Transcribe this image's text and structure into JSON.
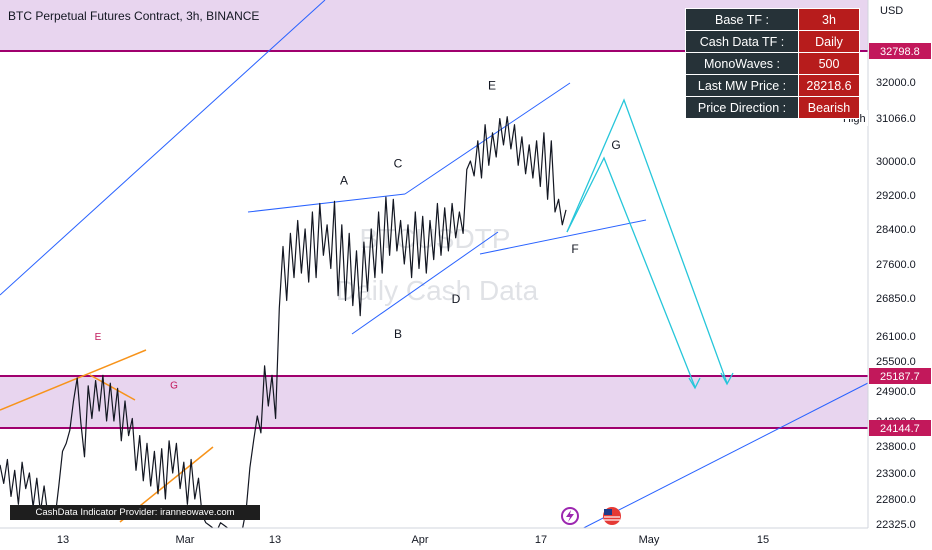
{
  "header": {
    "title": "BTC Perpetual Futures Contract, 3h, BINANCE"
  },
  "watermark": {
    "line1": "BTCUSDTP",
    "line2": "Daily Cash Data"
  },
  "info_table": {
    "rows": [
      {
        "key": "Base TF :",
        "value": "3h"
      },
      {
        "key": "Cash Data TF :",
        "value": "Daily"
      },
      {
        "key": "MonoWaves :",
        "value": "500"
      },
      {
        "key": "Last MW Price :",
        "value": "28218.6"
      },
      {
        "key": "Price Direction :",
        "value": "Bearish"
      }
    ]
  },
  "footer": {
    "credit": "CashData Indicator Provider: iranneowave.com"
  },
  "colors": {
    "zone_fill": "#e8d5ef",
    "zone_border": "#a0006e",
    "trendline": "#2962ff",
    "projection": "#26c6da",
    "wedge": "#f7931a",
    "price_line": "#131722",
    "tag_red": "#c2185b"
  },
  "chart_data": {
    "type": "line",
    "title": "BTC Perpetual Futures Contract, 3h, BINANCE",
    "y_axis_unit": "USD",
    "ylim": [
      22200,
      32950
    ],
    "x_ticks": [
      "13",
      "Mar",
      "13",
      "Apr",
      "17",
      "May",
      "15"
    ],
    "y_ticks": [
      22325.0,
      22800.0,
      23300.0,
      23800.0,
      24300.0,
      24900.0,
      25500.0,
      26100.0,
      26850.0,
      27600.0,
      28400.0,
      29200.0,
      30000.0,
      31066.0,
      32000.0,
      32798.8
    ],
    "y_tick_labels": [
      "22325.0",
      "22800.0",
      "23300.0",
      "23800.0",
      "24300.0",
      "24900.0",
      "25500.0",
      "26100.0",
      "26850.0",
      "27600.0",
      "28400.0",
      "29200.0",
      "30000.0",
      "31066.0",
      "32000.0",
      "32798.8"
    ],
    "price_tags": [
      {
        "label": "32798.8",
        "value": 32798.8
      },
      {
        "label": "25187.7",
        "value": 25187.7
      },
      {
        "label": "24144.7",
        "value": 24144.7
      }
    ],
    "high_marker": {
      "label": "High",
      "value": 31066.0
    },
    "zones": [
      {
        "from": 32798.8,
        "to": 32950
      },
      {
        "from": 24144.7,
        "to": 25187.7
      }
    ],
    "wave_labels": [
      {
        "label": "A",
        "price": 29450
      },
      {
        "label": "B",
        "price": 26050
      },
      {
        "label": "C",
        "price": 29850
      },
      {
        "label": "D",
        "price": 26750
      },
      {
        "label": "E",
        "price": 31800
      },
      {
        "label": "F",
        "price": 27850
      },
      {
        "label": "G",
        "price": 30300
      },
      {
        "label": "E",
        "price": 26000
      },
      {
        "label": "G",
        "price": 24950
      }
    ],
    "series": [
      {
        "values": [
          23450,
          23100,
          23550,
          22850,
          23350,
          22700,
          23500,
          23000,
          23300,
          22650,
          23200,
          22550,
          23050,
          22500,
          22600,
          22450,
          23050,
          23700,
          23850,
          24100,
          24700,
          25150,
          24250,
          23600,
          25000,
          24350,
          25100,
          24500,
          25200,
          24300,
          25050,
          24300,
          24950,
          23900,
          24700,
          24000,
          24350,
          23350,
          24000,
          23150,
          23850,
          23050,
          23700,
          22900,
          23750,
          22800,
          23900,
          23300,
          23850,
          23000,
          23500,
          22700,
          23550,
          22800,
          23200,
          22500,
          22350,
          22300,
          22250,
          22200,
          22350,
          22300,
          22250,
          22200,
          22200,
          22200,
          22250,
          22600,
          23400,
          23900,
          24400,
          24050,
          25400,
          24600,
          25200,
          24350,
          26650,
          28000,
          26800,
          28300,
          27300,
          28600,
          27400,
          28400,
          27200,
          28800,
          27300,
          29000,
          27800,
          28500,
          27500,
          29050,
          26900,
          28500,
          26800,
          28300,
          26700,
          27900,
          26500,
          28100,
          27000,
          28400,
          27300,
          28800,
          27400,
          29150,
          27800,
          29100,
          27900,
          28600,
          27600,
          28500,
          27300,
          28800,
          27500,
          28700,
          27400,
          28600,
          27700,
          29000,
          27800,
          28900,
          27900,
          29000,
          28200,
          28800,
          28300,
          29800,
          30000,
          29650,
          30500,
          29600,
          30900,
          29900,
          30700,
          30100,
          31050,
          30400,
          31100,
          30300,
          30900,
          29900,
          30600,
          29700,
          30400,
          29600,
          30500,
          29400,
          30700,
          29100,
          30500,
          28800,
          29100,
          28500,
          28850
        ]
      }
    ]
  }
}
